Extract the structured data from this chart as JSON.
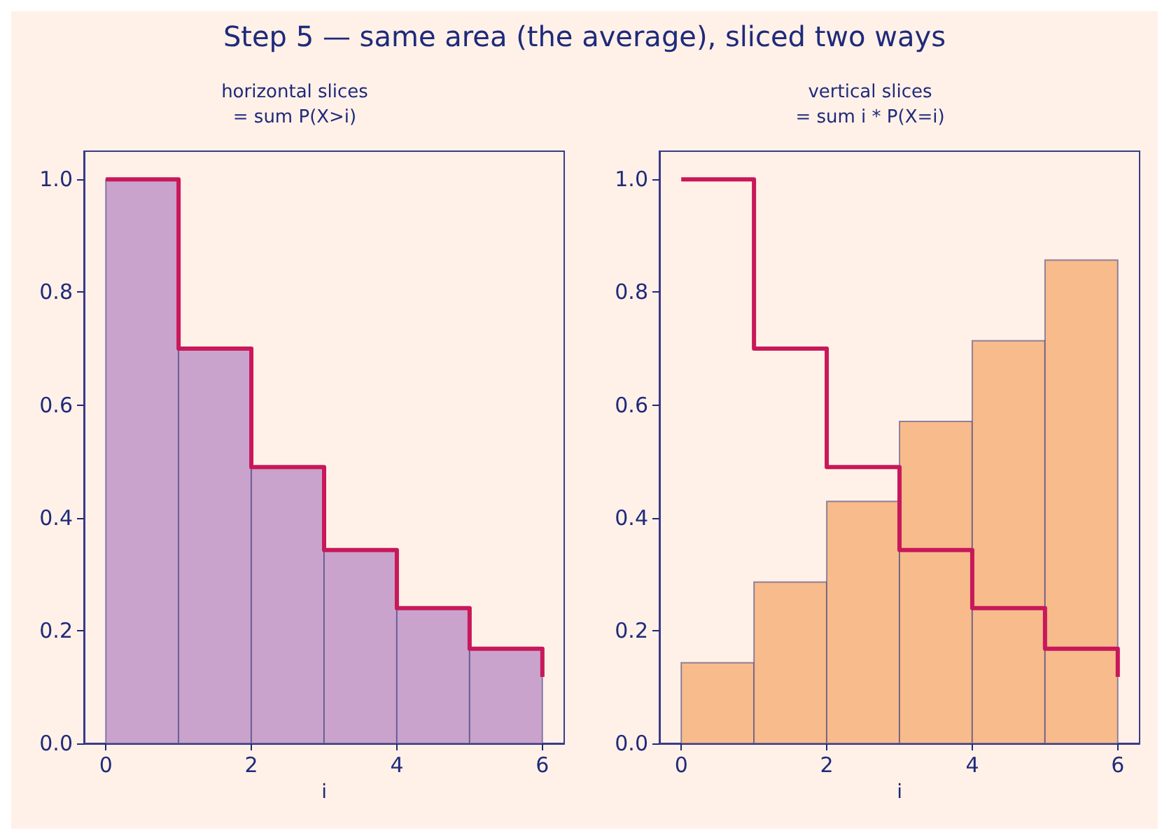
{
  "chart_data": [
    {
      "type": "histogram",
      "title": "horizontal slices\n= sum P(X>i)",
      "xlabel": "i",
      "annotations": [
        "Step 5 — same area (the average), sliced two ways"
      ],
      "bins": [
        0,
        1,
        2,
        3,
        4,
        5,
        6
      ],
      "values": [
        1,
        0.7,
        0.49,
        0.343,
        0.24,
        0.168
      ],
      "color": "#c9a3cb",
      "xlim": [
        -0.3,
        6.3
      ],
      "xticks": [
        0,
        2,
        4,
        6
      ],
      "ylim": [
        0,
        1.05
      ],
      "yticks": [
        {
          "value": 0,
          "label": "0.0"
        },
        {
          "value": 0.2,
          "label": "0.2"
        },
        {
          "value": 0.4,
          "label": "0.4"
        },
        {
          "value": 0.6,
          "label": "0.6"
        },
        {
          "value": 0.8,
          "label": "0.8"
        },
        {
          "value": 1,
          "label": "1.0"
        }
      ],
      "series": [
        {
          "type": "step",
          "color": "#c8185a",
          "x": [
            0,
            1,
            2,
            3,
            4,
            5,
            6
          ],
          "values": [
            1,
            0.7,
            0.49,
            0.343,
            0.24,
            0.168,
            0.118
          ]
        }
      ]
    },
    {
      "type": "histogram",
      "title": "vertical slices\n= sum i * P(X=i)",
      "xlabel": "i",
      "bins": [
        0,
        1,
        2,
        3,
        4,
        5,
        6
      ],
      "values": [
        0.143,
        0.286,
        0.429,
        0.571,
        0.714,
        0.857
      ],
      "color": "#f7bb8c",
      "xlim": [
        -0.3,
        6.3
      ],
      "xticks": [
        0,
        2,
        4,
        6
      ],
      "ylim": [
        0,
        1.05
      ],
      "yticks": [
        {
          "value": 0,
          "label": "0.0"
        },
        {
          "value": 0.2,
          "label": "0.2"
        },
        {
          "value": 0.4,
          "label": "0.4"
        },
        {
          "value": 0.6,
          "label": "0.6"
        },
        {
          "value": 0.8,
          "label": "0.8"
        },
        {
          "value": 1,
          "label": "1.0"
        }
      ],
      "series": [
        {
          "type": "step",
          "color": "#c8185a",
          "x": [
            0,
            1,
            2,
            3,
            4,
            5,
            6
          ],
          "values": [
            1,
            0.7,
            0.49,
            0.343,
            0.24,
            0.168,
            0.118
          ]
        }
      ]
    }
  ]
}
